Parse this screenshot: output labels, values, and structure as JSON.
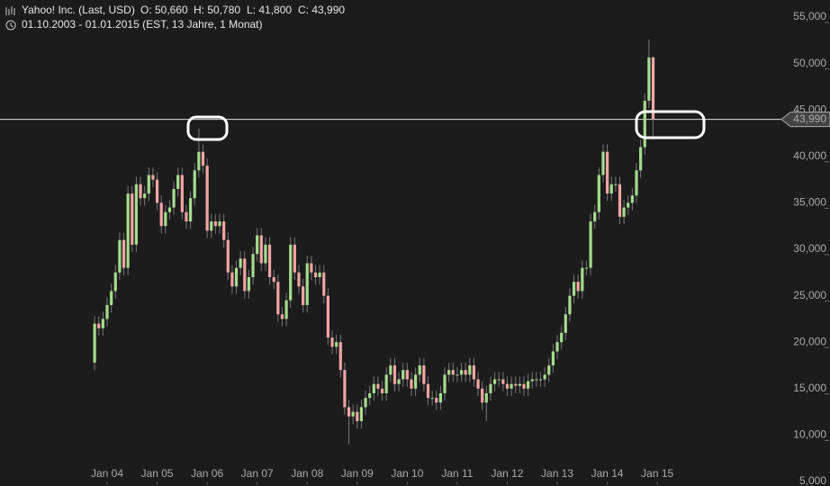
{
  "chart_data": {
    "type": "candlestick",
    "title": "Yahoo! Inc. (Last, USD)",
    "ohlc_labels": [
      "O: 50,660",
      "H: 50,780",
      "L: 41,800",
      "C: 43,990"
    ],
    "subtitle": "01.10.2003 - 01.01.2015 (EST, 13 Jahre, 1 Monat)",
    "x": [
      "2003-10",
      "2003-11",
      "2003-12",
      "2004-01",
      "2004-02",
      "2004-03",
      "2004-04",
      "2004-05",
      "2004-06",
      "2004-07",
      "2004-08",
      "2004-09",
      "2004-10",
      "2004-11",
      "2004-12",
      "2005-01",
      "2005-02",
      "2005-03",
      "2005-04",
      "2005-05",
      "2005-06",
      "2005-07",
      "2005-08",
      "2005-09",
      "2005-10",
      "2005-11",
      "2005-12",
      "2006-01",
      "2006-02",
      "2006-03",
      "2006-04",
      "2006-05",
      "2006-06",
      "2006-07",
      "2006-08",
      "2006-09",
      "2006-10",
      "2006-11",
      "2006-12",
      "2007-01",
      "2007-02",
      "2007-03",
      "2007-04",
      "2007-05",
      "2007-06",
      "2007-07",
      "2007-08",
      "2007-09",
      "2007-10",
      "2007-11",
      "2007-12",
      "2008-01",
      "2008-02",
      "2008-03",
      "2008-04",
      "2008-05",
      "2008-06",
      "2008-07",
      "2008-08",
      "2008-09",
      "2008-10",
      "2008-11",
      "2008-12",
      "2009-01",
      "2009-02",
      "2009-03",
      "2009-04",
      "2009-05",
      "2009-06",
      "2009-07",
      "2009-08",
      "2009-09",
      "2009-10",
      "2009-11",
      "2009-12",
      "2010-01",
      "2010-02",
      "2010-03",
      "2010-04",
      "2010-05",
      "2010-06",
      "2010-07",
      "2010-08",
      "2010-09",
      "2010-10",
      "2010-11",
      "2010-12",
      "2011-01",
      "2011-02",
      "2011-03",
      "2011-04",
      "2011-05",
      "2011-06",
      "2011-07",
      "2011-08",
      "2011-09",
      "2011-10",
      "2011-11",
      "2011-12",
      "2012-01",
      "2012-02",
      "2012-03",
      "2012-04",
      "2012-05",
      "2012-06",
      "2012-07",
      "2012-08",
      "2012-09",
      "2012-10",
      "2012-11",
      "2012-12",
      "2013-01",
      "2013-02",
      "2013-03",
      "2013-04",
      "2013-05",
      "2013-06",
      "2013-07",
      "2013-08",
      "2013-09",
      "2013-10",
      "2013-11",
      "2013-12",
      "2014-01",
      "2014-02",
      "2014-03",
      "2014-04",
      "2014-05",
      "2014-06",
      "2014-07",
      "2014-08",
      "2014-09",
      "2014-10",
      "2014-11",
      "2014-12"
    ],
    "open": [
      17800,
      22000,
      21500,
      22500,
      24000,
      25500,
      27500,
      31000,
      28000,
      36000,
      30500,
      37000,
      35500,
      36000,
      38000,
      37500,
      35000,
      32500,
      34000,
      34500,
      36500,
      38000,
      34000,
      33000,
      35500,
      38500,
      40500,
      39000,
      32000,
      33000,
      32500,
      33000,
      31000,
      27500,
      26000,
      28000,
      29000,
      25500,
      27000,
      29500,
      31500,
      28500,
      30500,
      27000,
      26500,
      23000,
      22500,
      24500,
      30500,
      27500,
      26000,
      24000,
      28500,
      27500,
      27000,
      27500,
      25000,
      20500,
      19500,
      20000,
      17000,
      13000,
      12000,
      12500,
      11500,
      13000,
      14000,
      14500,
      15500,
      15000,
      14500,
      16500,
      17500,
      15500,
      16000,
      17000,
      16000,
      15000,
      16500,
      17500,
      15500,
      14000,
      14000,
      13500,
      14500,
      16500,
      17000,
      16500,
      16500,
      17000,
      16500,
      17500,
      16000,
      15000,
      13500,
      14500,
      15500,
      16000,
      16000,
      15500,
      15000,
      15500,
      15300,
      15500,
      15000,
      15800,
      16000,
      16000,
      16000,
      16500,
      17500,
      19000,
      20000,
      21000,
      23000,
      25000,
      26500,
      25500,
      28000,
      28000,
      33000,
      34000,
      38000,
      40500,
      36000,
      37000,
      37000,
      33500,
      34500,
      35000,
      35800,
      38500,
      41000,
      46000,
      50660
    ],
    "high": [
      22800,
      22800,
      23300,
      24800,
      26300,
      28300,
      31800,
      31800,
      36800,
      36800,
      37800,
      37800,
      36800,
      38800,
      38800,
      38300,
      35800,
      34800,
      35300,
      37300,
      38800,
      38800,
      34800,
      36300,
      39300,
      43000,
      41300,
      39800,
      33800,
      33800,
      33800,
      33800,
      31800,
      28300,
      28800,
      29800,
      29800,
      27800,
      30300,
      32300,
      32300,
      31300,
      31300,
      27800,
      27300,
      23800,
      25300,
      31300,
      31300,
      28300,
      26800,
      29300,
      29300,
      28300,
      28300,
      28300,
      25800,
      21300,
      20800,
      20800,
      17800,
      13800,
      13300,
      13300,
      13800,
      14800,
      15300,
      16300,
      16300,
      15800,
      17300,
      18300,
      18300,
      16800,
      17800,
      17800,
      16800,
      17300,
      18300,
      18300,
      16300,
      14800,
      14800,
      15300,
      17300,
      17800,
      17800,
      17300,
      17800,
      17800,
      18300,
      18300,
      16800,
      15800,
      15300,
      16300,
      16800,
      16800,
      16800,
      16300,
      16300,
      16300,
      16300,
      16300,
      16600,
      16800,
      16800,
      16800,
      17300,
      18300,
      19800,
      20800,
      21800,
      23800,
      25800,
      27300,
      27300,
      28800,
      28800,
      33800,
      34800,
      38800,
      41300,
      41300,
      37800,
      37800,
      37800,
      35300,
      35800,
      36600,
      39300,
      41800,
      46800,
      52600,
      50780
    ],
    "low": [
      17000,
      20700,
      20700,
      21700,
      23200,
      24700,
      26700,
      27200,
      27200,
      29700,
      29700,
      34700,
      34700,
      35200,
      36700,
      34200,
      31700,
      31700,
      33200,
      33700,
      35700,
      33200,
      32200,
      32200,
      34700,
      37700,
      38200,
      31200,
      31200,
      31700,
      31700,
      30200,
      26700,
      25200,
      25200,
      27200,
      24700,
      24700,
      26200,
      28700,
      27700,
      27700,
      26200,
      25700,
      22200,
      21700,
      21700,
      23700,
      26700,
      25200,
      23200,
      23200,
      26700,
      26200,
      26200,
      24200,
      19700,
      18700,
      18700,
      16200,
      12200,
      9000,
      11200,
      10700,
      10700,
      12200,
      13200,
      13700,
      14200,
      13700,
      13700,
      15700,
      14700,
      14700,
      15200,
      15200,
      14200,
      14200,
      15700,
      14700,
      13200,
      13200,
      12700,
      12700,
      13700,
      15700,
      15700,
      15700,
      15700,
      15700,
      15700,
      15200,
      14200,
      12700,
      11500,
      13700,
      14700,
      15200,
      14700,
      14200,
      14200,
      14500,
      14500,
      14200,
      14200,
      15000,
      15200,
      15200,
      15200,
      15700,
      16700,
      18200,
      19200,
      20200,
      22200,
      24200,
      24700,
      24700,
      27200,
      27200,
      32200,
      33200,
      37200,
      35200,
      35200,
      36200,
      32700,
      32700,
      33700,
      34200,
      35000,
      37700,
      40200,
      45200,
      41800
    ],
    "close": [
      22000,
      21500,
      22500,
      24000,
      25500,
      27500,
      31000,
      28000,
      36000,
      30500,
      37000,
      35500,
      36000,
      38000,
      37500,
      35000,
      32500,
      34000,
      34500,
      36500,
      38000,
      34000,
      33000,
      35500,
      38500,
      40500,
      39000,
      32000,
      33000,
      32500,
      33000,
      31000,
      27500,
      26000,
      28000,
      29000,
      25500,
      27000,
      29500,
      31500,
      28500,
      30500,
      27000,
      26500,
      23000,
      22500,
      24500,
      30500,
      27500,
      26000,
      24000,
      28500,
      27500,
      27000,
      27500,
      25000,
      20500,
      19500,
      20000,
      17000,
      13000,
      12000,
      12500,
      11500,
      13000,
      14000,
      14500,
      15500,
      15000,
      14500,
      16500,
      17500,
      15500,
      16000,
      17000,
      16000,
      15000,
      16500,
      17500,
      15500,
      14000,
      14000,
      13500,
      14500,
      16500,
      17000,
      16500,
      16500,
      17000,
      16500,
      17500,
      16000,
      15000,
      13500,
      14500,
      15500,
      16000,
      16000,
      15500,
      15000,
      15500,
      15300,
      15500,
      15000,
      15800,
      16000,
      16000,
      16000,
      16500,
      17500,
      19000,
      20000,
      21000,
      23000,
      25000,
      26500,
      25500,
      28000,
      28000,
      33000,
      34000,
      38000,
      40500,
      36000,
      37000,
      37000,
      33500,
      34500,
      35000,
      35800,
      38500,
      41000,
      46000,
      50660,
      43990
    ],
    "up_color": "#a4dc8c",
    "down_color": "#f2a4a4",
    "last_price": {
      "value": 43990,
      "label": "43,990"
    },
    "ylim": [
      5000,
      55000
    ],
    "yticks": [
      {
        "value": 5000,
        "label": "5,000"
      },
      {
        "value": 10000,
        "label": "10,000"
      },
      {
        "value": 15000,
        "label": "15,000"
      },
      {
        "value": 20000,
        "label": "20,000"
      },
      {
        "value": 25000,
        "label": "25,000"
      },
      {
        "value": 30000,
        "label": "30,000"
      },
      {
        "value": 35000,
        "label": "35,000"
      },
      {
        "value": 40000,
        "label": "40,000"
      },
      {
        "value": 45000,
        "label": "45,000"
      },
      {
        "value": 50000,
        "label": "50,000"
      },
      {
        "value": 55000,
        "label": "55,000"
      }
    ],
    "xticks": [
      {
        "value": "2004-01",
        "label": "Jan 04"
      },
      {
        "value": "2005-01",
        "label": "Jan 05"
      },
      {
        "value": "2006-01",
        "label": "Jan 06"
      },
      {
        "value": "2007-01",
        "label": "Jan 07"
      },
      {
        "value": "2008-01",
        "label": "Jan 08"
      },
      {
        "value": "2009-01",
        "label": "Jan 09"
      },
      {
        "value": "2010-01",
        "label": "Jan 10"
      },
      {
        "value": "2011-01",
        "label": "Jan 11"
      },
      {
        "value": "2012-01",
        "label": "Jan 12"
      },
      {
        "value": "2013-01",
        "label": "Jan 13"
      },
      {
        "value": "2014-01",
        "label": "Jan 14"
      },
      {
        "value": "2015-01",
        "label": "Jan 15"
      }
    ]
  }
}
